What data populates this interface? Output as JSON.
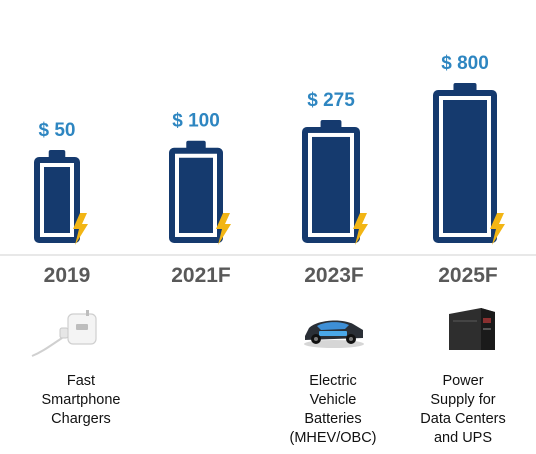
{
  "chart_data": {
    "type": "bar",
    "categories": [
      "2019",
      "2021F",
      "2023F",
      "2025F"
    ],
    "values": [
      50,
      100,
      275,
      800
    ],
    "value_labels": [
      "$ 50",
      "$ 100",
      "$ 275",
      "$ 800"
    ],
    "descriptions": [
      "Fast\nSmartphone\nChargers",
      "",
      "Electric\nVehicle\nBatteries\n(MHEV/OBC)",
      "Power\nSupply for\nData Centers\nand UPS"
    ],
    "icons": [
      "usb-charger-icon",
      "",
      "electric-car-icon",
      "ups-power-supply-icon"
    ],
    "xlabel": "",
    "ylabel": "",
    "grid": false,
    "legend": "none"
  },
  "colors": {
    "battery": "#153a6e",
    "value_label": "#2e86c1",
    "bolt": "#f2b514",
    "year": "#595959"
  }
}
